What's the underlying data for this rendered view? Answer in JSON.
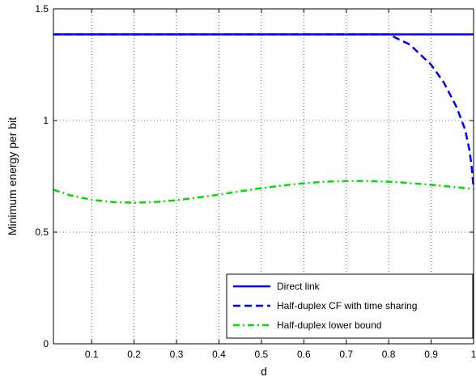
{
  "chart_data": {
    "type": "line",
    "title": "",
    "xlabel": "d",
    "ylabel": "Minimum energy per bit",
    "xlim": [
      0.01,
      1.0
    ],
    "ylim": [
      0,
      1.5
    ],
    "xticks": [
      0.1,
      0.2,
      0.3,
      0.4,
      0.5,
      0.6,
      0.7,
      0.8,
      0.9,
      1
    ],
    "xtick_labels": [
      "0.1",
      "0.2",
      "0.3",
      "0.4",
      "0.5",
      "0.6",
      "0.7",
      "0.8",
      "0.9",
      "1"
    ],
    "yticks": [
      0,
      0.5,
      1,
      1.5
    ],
    "ytick_labels": [
      "0",
      "0.5",
      "1",
      "1.5"
    ],
    "grid": true,
    "legend_position": "bottom-right",
    "series": [
      {
        "name": "Direct link",
        "color": "#0000ff",
        "style": "solid",
        "x": [
          0.01,
          1.0
        ],
        "y": [
          1.386,
          1.386
        ]
      },
      {
        "name": "Half-duplex CF with time sharing",
        "color": "#0000ff",
        "style": "dashed",
        "x": [
          0.01,
          0.8,
          0.85,
          0.9,
          0.93,
          0.96,
          0.98,
          0.99,
          0.995,
          1.0
        ],
        "y": [
          1.386,
          1.386,
          1.34,
          1.25,
          1.17,
          1.06,
          0.96,
          0.87,
          0.8,
          0.7
        ]
      },
      {
        "name": "Half-duplex lower bound",
        "color": "#00dd00",
        "style": "dashdot",
        "x": [
          0.01,
          0.05,
          0.1,
          0.15,
          0.2,
          0.25,
          0.3,
          0.35,
          0.4,
          0.45,
          0.5,
          0.55,
          0.6,
          0.65,
          0.7,
          0.75,
          0.8,
          0.85,
          0.9,
          0.95,
          1.0
        ],
        "y": [
          0.69,
          0.665,
          0.645,
          0.635,
          0.632,
          0.635,
          0.643,
          0.655,
          0.668,
          0.683,
          0.697,
          0.709,
          0.719,
          0.726,
          0.729,
          0.729,
          0.726,
          0.72,
          0.712,
          0.703,
          0.693
        ]
      }
    ]
  }
}
